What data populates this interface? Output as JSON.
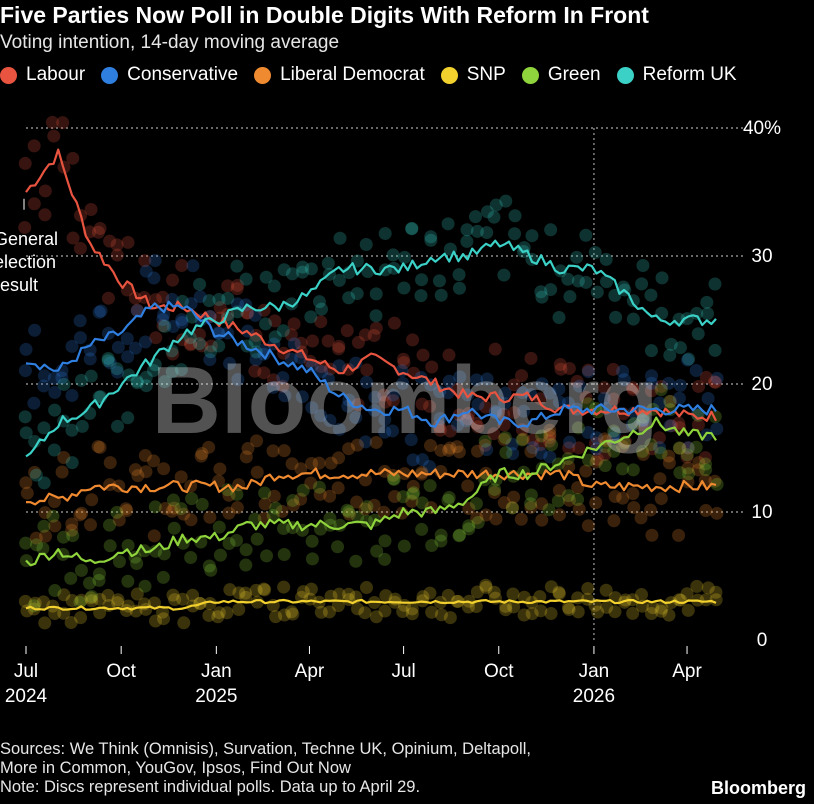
{
  "header": {
    "title": "Five Parties Now Poll in Double Digits With Reform In Front",
    "subtitle": "Voting intention, 14-day moving average"
  },
  "footer": {
    "sources_line1": "Sources: We Think (Omnisis), Survation, Techne UK, Opinium, Deltapoll,",
    "sources_line2": "More in Common, YouGov, Ipsos, Find Out Now",
    "note": "Note: Discs represent individual polls. Data up to April 29.",
    "brand": "Bloomberg"
  },
  "chart_data": {
    "type": "line",
    "title": "Five Parties Now Poll in Double Digits With Reform In Front",
    "subtitle": "Voting intention, 14-day moving average",
    "x": [
      "2024-07",
      "2024-08",
      "2024-09",
      "2024-10",
      "2024-11",
      "2024-12",
      "2025-01",
      "2025-02",
      "2025-03",
      "2025-04",
      "2025-05",
      "2025-06",
      "2025-07",
      "2025-08",
      "2025-09",
      "2025-10",
      "2025-11",
      "2025-12",
      "2026-01",
      "2026-02",
      "2026-03",
      "2026-04"
    ],
    "x_ticks": [
      {
        "date": "2024-07",
        "label": "Jul",
        "year": "2024"
      },
      {
        "date": "2024-10",
        "label": "Oct",
        "year": ""
      },
      {
        "date": "2025-01",
        "label": "Jan",
        "year": "2025"
      },
      {
        "date": "2025-04",
        "label": "Apr",
        "year": ""
      },
      {
        "date": "2025-07",
        "label": "Jul",
        "year": ""
      },
      {
        "date": "2025-10",
        "label": "Oct",
        "year": ""
      },
      {
        "date": "2026-01",
        "label": "Jan",
        "year": "2026"
      },
      {
        "date": "2026-04",
        "label": "Apr",
        "year": ""
      }
    ],
    "y_ticks": [
      "0",
      "10",
      "20",
      "30",
      "40%"
    ],
    "y_tick_values": [
      0,
      10,
      20,
      30,
      40
    ],
    "ylim": [
      0,
      40
    ],
    "grid": true,
    "legend_position": "top",
    "annotation": {
      "date": "2024-07",
      "value": 34,
      "lines": [
        "General",
        "election",
        "result"
      ]
    },
    "series": [
      {
        "name": "Labour",
        "color": "#e8543f",
        "values": [
          35,
          38,
          31,
          28,
          26,
          26,
          25,
          24,
          23,
          22,
          21,
          22,
          21,
          20,
          19,
          19,
          19,
          18,
          18,
          18,
          18,
          17.5
        ]
      },
      {
        "name": "Conservative",
        "color": "#2f7fe0",
        "values": [
          22,
          21,
          23,
          24,
          26,
          26,
          24,
          23,
          22,
          21,
          19,
          18,
          18,
          17,
          18,
          17,
          17,
          18,
          18,
          18,
          18,
          18
        ]
      },
      {
        "name": "Liberal Democrat",
        "color": "#f08a30",
        "values": [
          11,
          11,
          12,
          12,
          12,
          12,
          12,
          12,
          13,
          13,
          13,
          13,
          13,
          13,
          13,
          13,
          13,
          13,
          12,
          12,
          12,
          12
        ]
      },
      {
        "name": "SNP",
        "color": "#f2d12e",
        "values": [
          2.5,
          2.5,
          2.5,
          2.5,
          2.5,
          2.5,
          3,
          3,
          3,
          3,
          3,
          3,
          3,
          3,
          3,
          3,
          3,
          3,
          3,
          3,
          3,
          3
        ]
      },
      {
        "name": "Green",
        "color": "#8fd43c",
        "values": [
          6,
          7,
          6,
          7,
          7,
          8,
          8,
          9,
          9,
          9,
          9,
          9,
          10,
          10,
          11,
          13,
          13,
          14,
          15,
          16,
          17,
          16
        ]
      },
      {
        "name": "Reform UK",
        "color": "#3bd1c7",
        "values": [
          14,
          17,
          18,
          20,
          22,
          24,
          25,
          26,
          26,
          27,
          29,
          29,
          29,
          30,
          30,
          31,
          30,
          29,
          29,
          27,
          25,
          25
        ]
      }
    ]
  }
}
